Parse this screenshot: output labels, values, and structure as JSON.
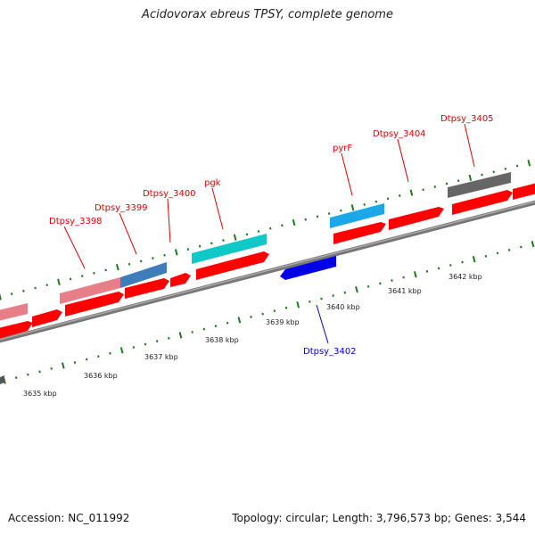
{
  "title": "Acidovorax ebreus TPSY, complete genome",
  "footer": {
    "accession": "Accession: NC_011992",
    "stats": "Topology: circular; Length: 3,796,573 bp; Genes: 3,544"
  },
  "colors": {
    "cds": "#ff0000",
    "cds_dim": "#e87f88",
    "trna": "#00cccc",
    "rrna": "#2e6fb5",
    "pseudo": "#666666",
    "blue_gene": "#0000ee",
    "backbone": "#888888",
    "tick": "#1f7a1f",
    "label_red": "#e00000",
    "label_blue": "#0000cc"
  },
  "scale": {
    "unit": "kbp",
    "ticks": [
      {
        "pos": 3635,
        "label": "3635 kbp"
      },
      {
        "pos": 3636,
        "label": "3636 kbp"
      },
      {
        "pos": 3637,
        "label": "3637 kbp"
      },
      {
        "pos": 3638,
        "label": "3638 kbp"
      },
      {
        "pos": 3639,
        "label": "3639 kbp"
      },
      {
        "pos": 3640,
        "label": "3640 kbp"
      },
      {
        "pos": 3641,
        "label": "3641 kbp"
      },
      {
        "pos": 3642,
        "label": "3642 kbp"
      }
    ]
  },
  "gene_labels": [
    {
      "name": "Dtpsy_3398",
      "color": "red"
    },
    {
      "name": "Dtpsy_3399",
      "color": "red"
    },
    {
      "name": "Dtpsy_3400",
      "color": "red"
    },
    {
      "name": "pgk",
      "color": "red"
    },
    {
      "name": "pyrF",
      "color": "red"
    },
    {
      "name": "Dtpsy_3404",
      "color": "red"
    },
    {
      "name": "Dtpsy_3405",
      "color": "red"
    },
    {
      "name": "Dtpsy_3402",
      "color": "blue"
    }
  ]
}
